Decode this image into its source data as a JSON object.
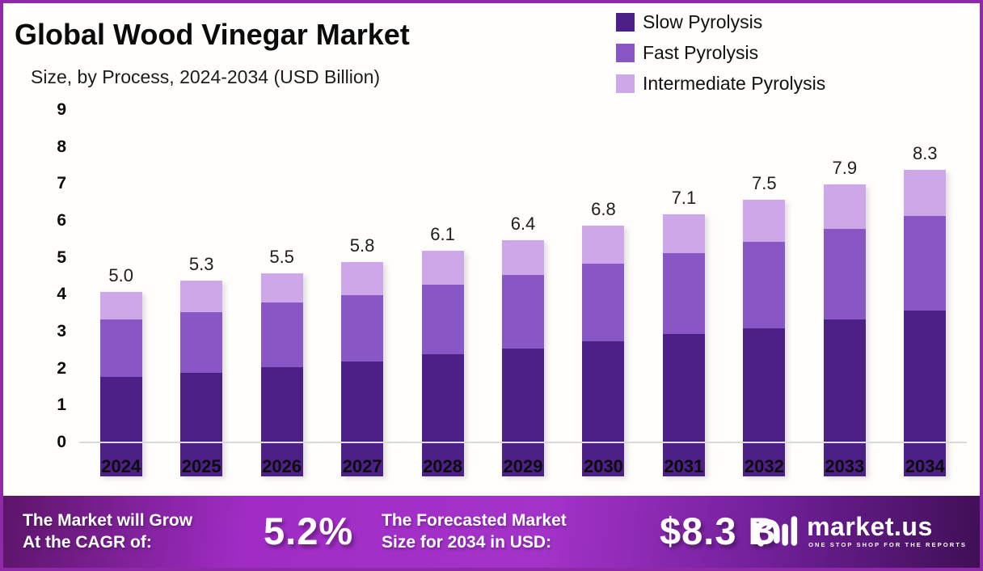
{
  "header": {
    "title": "Global Wood Vinegar Market",
    "subtitle": "Size, by Process, 2024-2034 (USD Billion)"
  },
  "legend": [
    {
      "label": "Slow Pyrolysis",
      "color": "#4C2086"
    },
    {
      "label": "Fast Pyrolysis",
      "color": "#8857C5"
    },
    {
      "label": "Intermediate Pyrolysis",
      "color": "#CDA7E7"
    }
  ],
  "chart_data": {
    "type": "bar",
    "stacked": true,
    "title": "Global Wood Vinegar Market Size, by Process, 2024-2034 (USD Billion)",
    "categories": [
      "2024",
      "2025",
      "2026",
      "2027",
      "2028",
      "2029",
      "2030",
      "2031",
      "2032",
      "2033",
      "2034"
    ],
    "series": [
      {
        "name": "Slow Pyrolysis",
        "color": "#4C2086",
        "values": [
          2.7,
          2.8,
          2.95,
          3.1,
          3.3,
          3.45,
          3.65,
          3.85,
          4.0,
          4.25,
          4.5
        ]
      },
      {
        "name": "Fast Pyrolysis",
        "color": "#8857C5",
        "values": [
          1.55,
          1.65,
          1.75,
          1.8,
          1.9,
          2.0,
          2.1,
          2.2,
          2.35,
          2.45,
          2.55
        ]
      },
      {
        "name": "Intermediate Pyrolysis",
        "color": "#CDA7E7",
        "values": [
          0.75,
          0.85,
          0.8,
          0.9,
          0.9,
          0.95,
          1.05,
          1.05,
          1.15,
          1.2,
          1.25
        ]
      }
    ],
    "totals": [
      5.0,
      5.3,
      5.5,
      5.8,
      6.1,
      6.4,
      6.8,
      7.1,
      7.5,
      7.9,
      8.3
    ],
    "total_labels": [
      "5.0",
      "5.3",
      "5.5",
      "5.8",
      "6.1",
      "6.4",
      "6.8",
      "7.1",
      "7.5",
      "7.9",
      "8.3"
    ],
    "yticks": [
      0,
      1,
      2,
      3,
      4,
      5,
      6,
      7,
      8,
      9
    ],
    "ylim": [
      0,
      9
    ],
    "xlabel": "",
    "ylabel": "",
    "grid": false,
    "legend_position": "top-right"
  },
  "footer": {
    "cagr_label_line1": "The Market will Grow",
    "cagr_label_line2": "At the CAGR of:",
    "cagr_value": "5.2%",
    "forecast_label_line1": "The Forecasted Market",
    "forecast_label_line2": "Size for 2034 in USD:",
    "forecast_value": "$8.3 B",
    "logo_text": "market.us",
    "logo_tagline": "ONE STOP SHOP FOR THE REPORTS"
  },
  "colors": {
    "frame_border": "#8E2AA8",
    "background": "#FFFEFC",
    "axis_line": "#D9D9D9",
    "text": "#0B0B0B",
    "footer_gradient_bright": "#A433C9",
    "footer_gradient_dark": "#3F0F55"
  }
}
